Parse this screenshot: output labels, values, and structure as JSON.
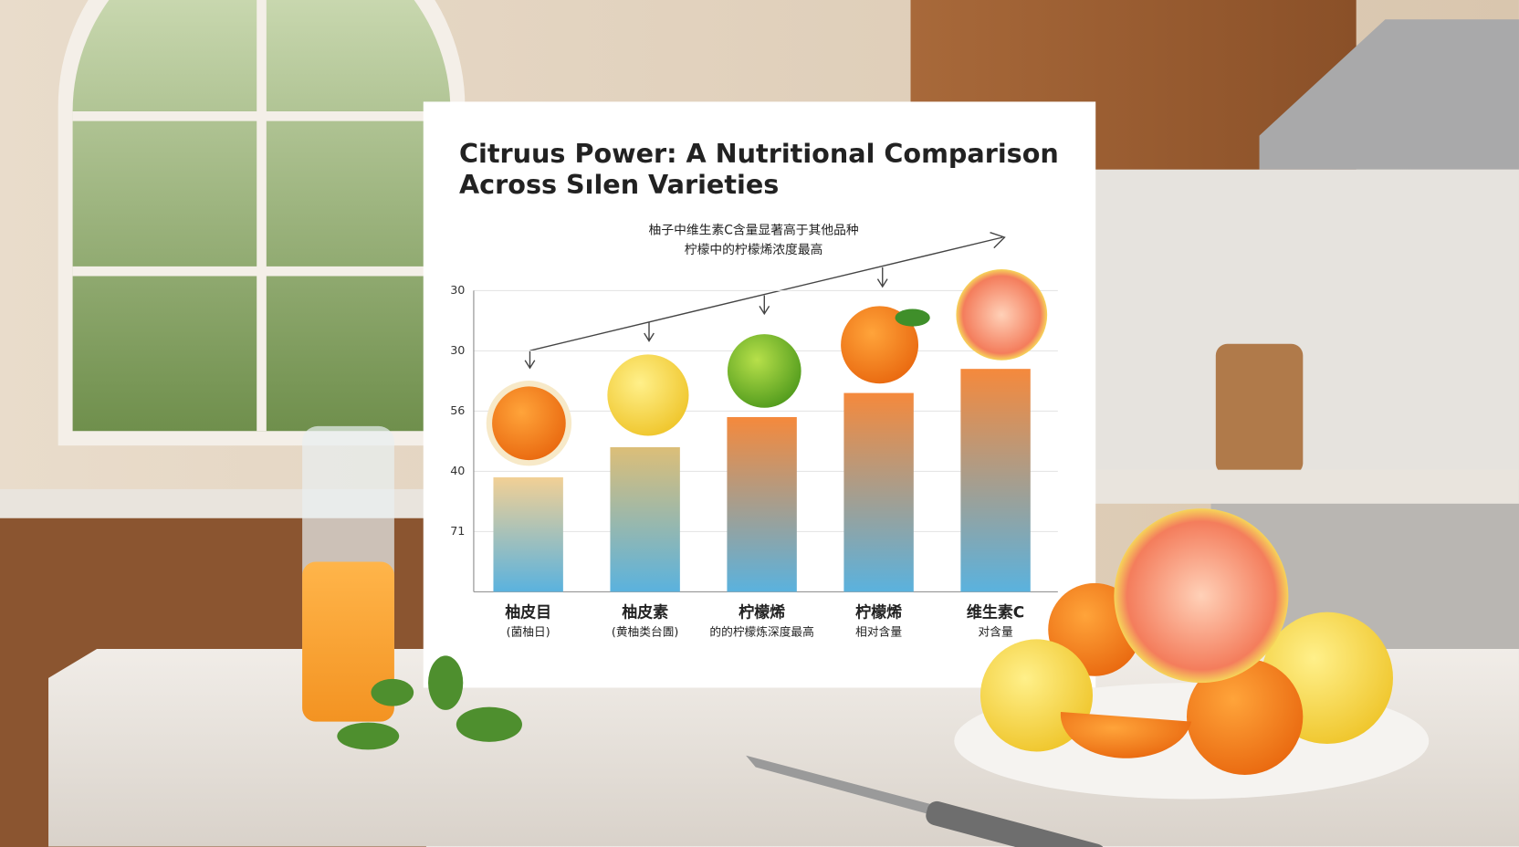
{
  "chart_data": {
    "type": "bar",
    "title_lines": [
      "Citruus Power: A Nutritional Comparison",
      "Across Sılen Varieties"
    ],
    "annotations": [
      "柚子中维生素C含量显著高于其他品种",
      "柠檬中的柠檬烯浓度最高"
    ],
    "categories": [
      "柚皮目",
      "柚皮素",
      "柠檬烯",
      "柠檬烯",
      "维生素C"
    ],
    "sublabels": [
      "(菌柚日)",
      "(黄柚类台圊)",
      "的的柠檬炼深度最高",
      "相对含量",
      "对含量"
    ],
    "values": [
      1.9,
      2.4,
      2.9,
      3.3,
      3.7
    ],
    "colors": [
      "#f2d095",
      "#dcbe78",
      "#f5893c",
      "#f5893c",
      "#f5893c"
    ],
    "gradient_end_color": "#5ab2de",
    "ylim": [
      0,
      5
    ],
    "yticks": [
      {
        "value": 1,
        "label": "71"
      },
      {
        "value": 2,
        "label": "40"
      },
      {
        "value": 3,
        "label": "56"
      },
      {
        "value": 4,
        "label": "30"
      },
      {
        "value": 5,
        "label": "30"
      }
    ],
    "grid": true
  }
}
